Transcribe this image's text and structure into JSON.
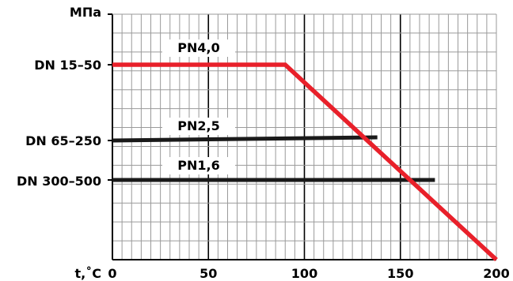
{
  "chart_data": {
    "type": "line",
    "ylabel": "МПа",
    "xlabel": "t,˚C",
    "xlim": [
      0,
      200
    ],
    "x_ticks": [
      {
        "value": 0,
        "label": "0"
      },
      {
        "value": 50,
        "label": "50"
      },
      {
        "value": 100,
        "label": "100"
      },
      {
        "value": 150,
        "label": "150"
      },
      {
        "value": 200,
        "label": "200"
      }
    ],
    "grid": true,
    "y_category_labels": [
      "DN 15–50",
      "DN 65–250",
      "DN 300–500"
    ],
    "series": [
      {
        "name": "PN4,0",
        "color": "#e8202a",
        "points": [
          [
            0,
            4.0
          ],
          [
            90,
            4.0
          ],
          [
            200,
            0.0
          ]
        ]
      },
      {
        "name": "PN2,5",
        "color": "#1a1a1a",
        "points": [
          [
            0,
            2.5
          ],
          [
            138,
            2.55
          ]
        ]
      },
      {
        "name": "PN1,6",
        "color": "#1a1a1a",
        "points": [
          [
            0,
            1.6
          ],
          [
            168,
            1.6
          ]
        ]
      }
    ]
  }
}
